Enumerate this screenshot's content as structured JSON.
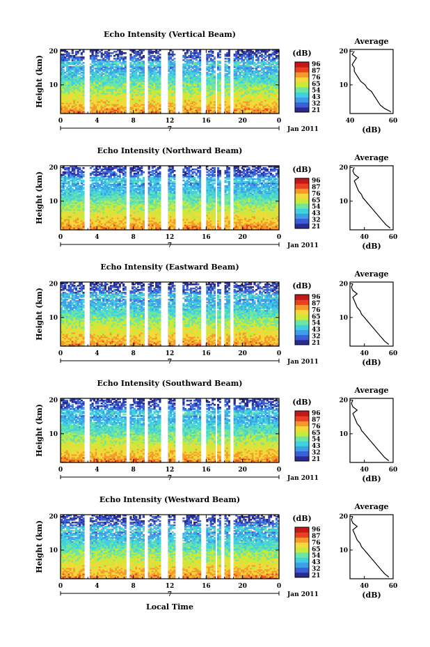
{
  "figure": {
    "xlabel": "Local Time",
    "date_label": "Jan 2011",
    "day_label": "7",
    "colorbar": {
      "unit": "(dB)",
      "ticks": [
        "96",
        "87",
        "76",
        "65",
        "54",
        "43",
        "32",
        "21"
      ]
    },
    "colormap": [
      "#2b2b8f",
      "#3b5fd9",
      "#3f9ee8",
      "#40d0e0",
      "#6ee6a0",
      "#c8ea3a",
      "#f5d83a",
      "#f59a2a",
      "#e84020",
      "#c21818"
    ]
  },
  "chart_data": [
    {
      "type": "heatmap",
      "title": "Echo Intensity (Vertical Beam)",
      "ylabel": "Height (km)",
      "xlabel": "Local Time",
      "x_ticks": [
        "0",
        "4",
        "8",
        "12",
        "16",
        "20",
        "0"
      ],
      "y_ticks": [
        "20",
        "10"
      ],
      "xlim": [
        0,
        24
      ],
      "ylim": [
        1.5,
        20.5
      ],
      "gaps_hours": [
        [
          2.6,
          3.3
        ],
        [
          7.3,
          7.6
        ],
        [
          9.3,
          9.7
        ],
        [
          11.1,
          11.9
        ],
        [
          12.6,
          13.4
        ],
        [
          15.5,
          16.0
        ],
        [
          17.0,
          17.3
        ],
        [
          17.7,
          18.0
        ],
        [
          18.6,
          19.0
        ]
      ],
      "profile": {
        "title": "Average",
        "xlabel": "(dB)",
        "xlim": [
          40,
          60
        ],
        "x_ticks": [
          "40",
          "60"
        ],
        "y_ticks": [
          "20",
          "10"
        ],
        "heights": [
          2,
          3,
          4,
          5,
          6,
          7,
          8,
          9,
          10,
          11,
          12,
          13,
          14,
          15,
          16,
          17,
          18,
          19,
          20
        ],
        "values": [
          59,
          56,
          54,
          53,
          52,
          51,
          50,
          48,
          47,
          45,
          44,
          43,
          42,
          42,
          41,
          42,
          43,
          41,
          42
        ]
      }
    },
    {
      "type": "heatmap",
      "title": "Echo Intensity (Northward Beam)",
      "ylabel": "Height (km)",
      "xlabel": "Local Time",
      "x_ticks": [
        "0",
        "4",
        "8",
        "12",
        "16",
        "20",
        "0"
      ],
      "y_ticks": [
        "20",
        "10"
      ],
      "xlim": [
        0,
        24
      ],
      "ylim": [
        1.5,
        20.5
      ],
      "gaps_hours": [
        [
          2.6,
          3.3
        ],
        [
          7.3,
          7.6
        ],
        [
          9.3,
          9.7
        ],
        [
          11.1,
          11.9
        ],
        [
          12.6,
          13.4
        ],
        [
          15.5,
          16.0
        ],
        [
          17.0,
          17.3
        ],
        [
          17.7,
          18.0
        ],
        [
          18.6,
          19.0
        ]
      ],
      "profile": {
        "title": "Average",
        "xlabel": "(dB)",
        "xlim": [
          30,
          60
        ],
        "x_ticks": [
          "40",
          "60"
        ],
        "y_ticks": [
          "20",
          "10"
        ],
        "heights": [
          2,
          3,
          4,
          5,
          6,
          7,
          8,
          9,
          10,
          11,
          12,
          13,
          14,
          15,
          16,
          17,
          18,
          19,
          20
        ],
        "values": [
          58,
          55,
          53,
          51,
          49,
          47,
          45,
          43,
          41,
          39,
          38,
          36,
          35,
          34,
          33,
          36,
          33,
          32,
          33
        ]
      }
    },
    {
      "type": "heatmap",
      "title": "Echo Intensity (Eastward Beam)",
      "ylabel": "Height (km)",
      "xlabel": "Local Time",
      "x_ticks": [
        "0",
        "4",
        "8",
        "12",
        "16",
        "20",
        "0"
      ],
      "y_ticks": [
        "20",
        "10"
      ],
      "xlim": [
        0,
        24
      ],
      "ylim": [
        1.5,
        20.5
      ],
      "gaps_hours": [
        [
          2.6,
          3.3
        ],
        [
          7.3,
          7.6
        ],
        [
          9.3,
          9.7
        ],
        [
          11.1,
          11.9
        ],
        [
          12.6,
          13.4
        ],
        [
          15.5,
          16.0
        ],
        [
          17.0,
          17.3
        ],
        [
          17.7,
          18.0
        ],
        [
          18.6,
          19.0
        ]
      ],
      "profile": {
        "title": "Average",
        "xlabel": "(dB)",
        "xlim": [
          30,
          60
        ],
        "x_ticks": [
          "40",
          "60"
        ],
        "y_ticks": [
          "20",
          "10"
        ],
        "heights": [
          2,
          3,
          4,
          5,
          6,
          7,
          8,
          9,
          10,
          11,
          12,
          13,
          14,
          15,
          16,
          17,
          18,
          19,
          20
        ],
        "values": [
          57,
          54,
          52,
          50,
          48,
          46,
          44,
          42,
          40,
          38,
          37,
          35,
          34,
          33,
          32,
          35,
          32,
          31,
          32
        ]
      }
    },
    {
      "type": "heatmap",
      "title": "Echo Intensity (Southward Beam)",
      "ylabel": "Height (km)",
      "xlabel": "Local Time",
      "x_ticks": [
        "0",
        "4",
        "8",
        "12",
        "16",
        "20",
        "0"
      ],
      "y_ticks": [
        "20",
        "10"
      ],
      "xlim": [
        0,
        24
      ],
      "ylim": [
        1.5,
        20.5
      ],
      "gaps_hours": [
        [
          2.6,
          3.3
        ],
        [
          7.3,
          7.6
        ],
        [
          9.3,
          9.7
        ],
        [
          11.1,
          11.9
        ],
        [
          12.6,
          13.4
        ],
        [
          15.5,
          16.0
        ],
        [
          17.0,
          17.3
        ],
        [
          17.7,
          18.0
        ],
        [
          18.6,
          19.0
        ]
      ],
      "profile": {
        "title": "Average",
        "xlabel": "(dB)",
        "xlim": [
          30,
          60
        ],
        "x_ticks": [
          "40",
          "60"
        ],
        "y_ticks": [
          "20",
          "10"
        ],
        "heights": [
          2,
          3,
          4,
          5,
          6,
          7,
          8,
          9,
          10,
          11,
          12,
          13,
          14,
          15,
          16,
          17,
          18,
          19,
          20
        ],
        "values": [
          57,
          54,
          52,
          50,
          48,
          46,
          44,
          42,
          40,
          38,
          37,
          35,
          34,
          33,
          32,
          35,
          32,
          31,
          32
        ]
      }
    },
    {
      "type": "heatmap",
      "title": "Echo Intensity (Westward Beam)",
      "ylabel": "Height (km)",
      "xlabel": "Local Time",
      "x_ticks": [
        "0",
        "4",
        "8",
        "12",
        "16",
        "20",
        "0"
      ],
      "y_ticks": [
        "20",
        "10"
      ],
      "xlim": [
        0,
        24
      ],
      "ylim": [
        1.5,
        20.5
      ],
      "gaps_hours": [
        [
          2.6,
          3.3
        ],
        [
          7.3,
          7.6
        ],
        [
          9.3,
          9.7
        ],
        [
          11.1,
          11.9
        ],
        [
          12.6,
          13.4
        ],
        [
          15.5,
          16.0
        ],
        [
          17.0,
          17.3
        ],
        [
          17.7,
          18.0
        ],
        [
          18.6,
          19.0
        ]
      ],
      "profile": {
        "title": "Average",
        "xlabel": "(dB)",
        "xlim": [
          30,
          60
        ],
        "x_ticks": [
          "40",
          "60"
        ],
        "y_ticks": [
          "20",
          "10"
        ],
        "heights": [
          2,
          3,
          4,
          5,
          6,
          7,
          8,
          9,
          10,
          11,
          12,
          13,
          14,
          15,
          16,
          17,
          18,
          19,
          20
        ],
        "values": [
          57,
          54,
          52,
          50,
          48,
          46,
          44,
          42,
          40,
          38,
          37,
          35,
          34,
          33,
          32,
          35,
          32,
          31,
          32
        ]
      }
    }
  ]
}
